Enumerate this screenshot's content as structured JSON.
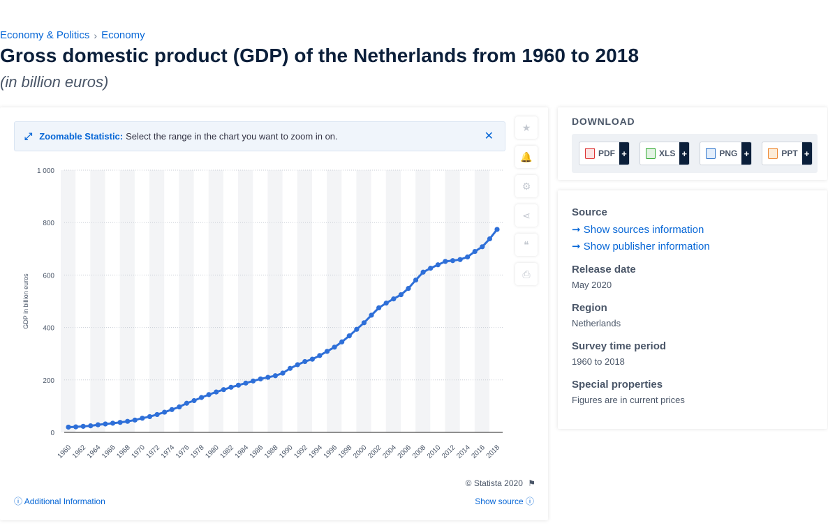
{
  "breadcrumb": {
    "item1": "Economy & Politics",
    "sep": "›",
    "item2": "Economy"
  },
  "title": "Gross domestic product (GDP) of the Netherlands from 1960 to 2018",
  "subtitle": "(in billion euros)",
  "zoom": {
    "icon": "expand-icon",
    "title": "Zoomable Statistic:",
    "text": "Select the range in the chart you want to zoom in on.",
    "close": "✕"
  },
  "tools": [
    "star-icon",
    "bell-icon",
    "gear-icon",
    "share-icon",
    "quote-icon",
    "print-icon"
  ],
  "chart_footer": {
    "copyright": "© Statista 2020",
    "additional": "Additional Information",
    "show_source": "Show source"
  },
  "colors": {
    "accent": "#0666d6",
    "line": "#2e6fd8",
    "dark": "#0b1f3a"
  },
  "download": {
    "title": "DOWNLOAD",
    "buttons": [
      {
        "label": "PDF",
        "plus": "+"
      },
      {
        "label": "XLS",
        "plus": "+"
      },
      {
        "label": "PNG",
        "plus": "+"
      },
      {
        "label": "PPT",
        "plus": "+"
      }
    ]
  },
  "info": {
    "source_title": "Source",
    "link1": "Show sources information",
    "link2": "Show publisher information",
    "release_title": "Release date",
    "release_value": "May 2020",
    "region_title": "Region",
    "region_value": "Netherlands",
    "survey_title": "Survey time period",
    "survey_value": "1960 to 2018",
    "special_title": "Special properties",
    "special_value": "Figures are in current prices"
  },
  "chart_data": {
    "type": "line",
    "ylabel": "GDP in billion euros",
    "xlabel": "",
    "ylim": [
      0,
      1000
    ],
    "yticks": [
      "0",
      "200",
      "400",
      "600",
      "800",
      "1 000"
    ],
    "x": [
      1960,
      1961,
      1962,
      1963,
      1964,
      1965,
      1966,
      1967,
      1968,
      1969,
      1970,
      1971,
      1972,
      1973,
      1974,
      1975,
      1976,
      1977,
      1978,
      1979,
      1980,
      1981,
      1982,
      1983,
      1984,
      1985,
      1986,
      1987,
      1988,
      1989,
      1990,
      1991,
      1992,
      1993,
      1994,
      1995,
      1996,
      1997,
      1998,
      1999,
      2000,
      2001,
      2002,
      2003,
      2004,
      2005,
      2006,
      2007,
      2008,
      2009,
      2010,
      2011,
      2012,
      2013,
      2014,
      2015,
      2016,
      2017,
      2018
    ],
    "xtick_labels": [
      "1960",
      "1962",
      "1964",
      "1966",
      "1968",
      "1970",
      "1972",
      "1974",
      "1976",
      "1978",
      "1980",
      "1982",
      "1984",
      "1986",
      "1988",
      "1990",
      "1992",
      "1994",
      "1996",
      "1998",
      "2000",
      "2002",
      "2004",
      "2006",
      "2008",
      "2010",
      "2012",
      "2014",
      "2016",
      "2018"
    ],
    "series": [
      {
        "values": [
          20,
          21,
          23,
          25,
          29,
          32,
          35,
          38,
          42,
          47,
          54,
          60,
          68,
          77,
          87,
          97,
          111,
          121,
          133,
          144,
          154,
          163,
          172,
          180,
          188,
          196,
          204,
          210,
          216,
          226,
          244,
          258,
          270,
          279,
          293,
          309,
          325,
          345,
          368,
          393,
          418,
          447,
          475,
          493,
          509,
          525,
          549,
          581,
          611,
          626,
          639,
          652,
          655,
          659,
          669,
          690,
          708,
          738,
          774
        ]
      }
    ],
    "grid": true,
    "legend": "none"
  }
}
